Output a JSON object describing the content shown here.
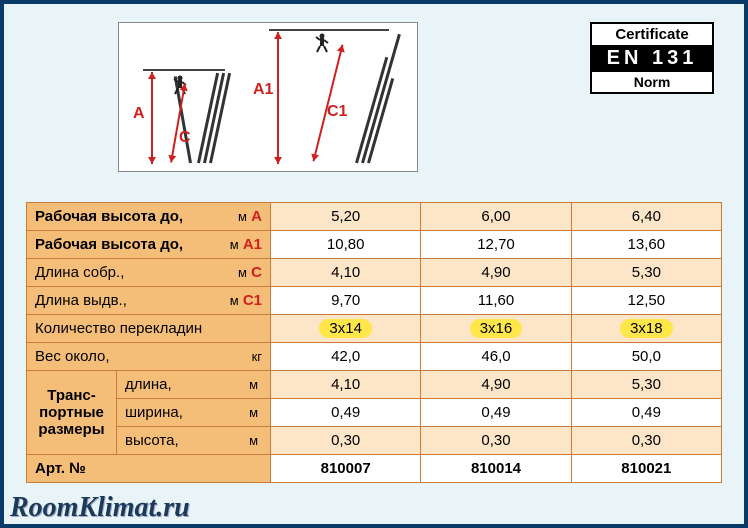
{
  "diagram": {
    "labels": {
      "A": "A",
      "A1": "A1",
      "C": "C",
      "C1": "C1"
    },
    "colors": {
      "arrow": "#d02020",
      "ladder": "#333333",
      "ceiling": "#444444"
    }
  },
  "certificate": {
    "title": "Certificate",
    "standard": "EN 131",
    "norm": "Norm"
  },
  "table": {
    "rows": [
      {
        "label": "Рабочая высота до,",
        "unit": "м",
        "ref": "A",
        "vals": [
          "5,20",
          "6,00",
          "6,40"
        ],
        "bold": true,
        "shade": "dark"
      },
      {
        "label": "Рабочая высота до,",
        "unit": "м",
        "ref": "A1",
        "vals": [
          "10,80",
          "12,70",
          "13,60"
        ],
        "bold": true,
        "shade": "light"
      },
      {
        "label": "Длина собр.,",
        "unit": "м",
        "ref": "C",
        "vals": [
          "4,10",
          "4,90",
          "5,30"
        ],
        "shade": "dark"
      },
      {
        "label": "Длина выдв.,",
        "unit": "м",
        "ref": "C1",
        "vals": [
          "9,70",
          "11,60",
          "12,50"
        ],
        "shade": "light"
      },
      {
        "label": "Количество перекладин",
        "vals": [
          "3x14",
          "3x16",
          "3x18"
        ],
        "highlight": true,
        "shade": "dark"
      },
      {
        "label": "Вес около,",
        "unit": "кг",
        "vals": [
          "42,0",
          "46,0",
          "50,0"
        ],
        "shade": "light"
      }
    ],
    "transport": {
      "group_label": "Транс-\nпортные\nразмеры",
      "sub": [
        {
          "label": "длина,",
          "unit": "м",
          "vals": [
            "4,10",
            "4,90",
            "5,30"
          ]
        },
        {
          "label": "ширина,",
          "unit": "м",
          "vals": [
            "0,49",
            "0,49",
            "0,49"
          ]
        },
        {
          "label": "высота,",
          "unit": "м",
          "vals": [
            "0,30",
            "0,30",
            "0,30"
          ]
        }
      ]
    },
    "article": {
      "label": "Арт. №",
      "vals": [
        "810007",
        "810014",
        "810021"
      ]
    }
  },
  "watermark": "RoomKlimat.ru",
  "styling": {
    "page_bg": "#e8f4f8",
    "border_bg": "#0a3a6a",
    "table_border": "#c97b3a",
    "header_bg": "#f5be78",
    "light_bg": "#fde5c8",
    "white_bg": "#ffffff",
    "highlight_bg": "#ffe74a",
    "red": "#d02020",
    "font_size": 15
  }
}
